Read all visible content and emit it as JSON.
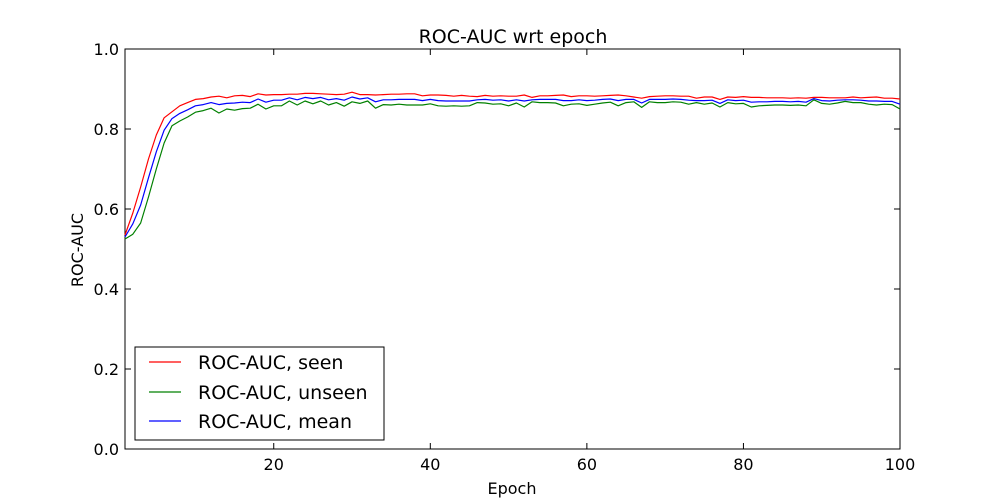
{
  "chart_data": {
    "type": "line",
    "title": "ROC-AUC wrt epoch",
    "xlabel": "Epoch",
    "ylabel": "ROC-AUC",
    "xlim": [
      1,
      100
    ],
    "ylim": [
      0.0,
      1.0
    ],
    "xticks": [
      20,
      40,
      60,
      80,
      100
    ],
    "xtick_labels": [
      "20",
      "40",
      "60",
      "80",
      "100"
    ],
    "yticks": [
      0.0,
      0.2,
      0.4,
      0.6,
      0.8,
      1.0
    ],
    "ytick_labels": [
      "0.0",
      "0.2",
      "0.4",
      "0.6",
      "0.8",
      "1.0"
    ],
    "grid": false,
    "legend_position": "lower-left",
    "x": [
      1,
      2,
      3,
      4,
      5,
      6,
      7,
      8,
      9,
      10,
      11,
      12,
      13,
      14,
      15,
      16,
      17,
      18,
      19,
      20,
      21,
      22,
      23,
      24,
      25,
      26,
      27,
      28,
      29,
      30,
      31,
      32,
      33,
      34,
      35,
      36,
      37,
      38,
      39,
      40,
      41,
      42,
      43,
      44,
      45,
      46,
      47,
      48,
      49,
      50,
      51,
      52,
      53,
      54,
      55,
      56,
      57,
      58,
      59,
      60,
      61,
      62,
      63,
      64,
      65,
      66,
      67,
      68,
      69,
      70,
      71,
      72,
      73,
      74,
      75,
      76,
      77,
      78,
      79,
      80,
      81,
      82,
      83,
      84,
      85,
      86,
      87,
      88,
      89,
      90,
      91,
      92,
      93,
      94,
      95,
      96,
      97,
      98,
      99,
      100
    ],
    "series": [
      {
        "name": "ROC-AUC, seen",
        "color": "#ff0000",
        "values": [
          0.535,
          0.59,
          0.655,
          0.725,
          0.785,
          0.828,
          0.843,
          0.858,
          0.866,
          0.874,
          0.876,
          0.88,
          0.882,
          0.878,
          0.883,
          0.884,
          0.881,
          0.888,
          0.885,
          0.886,
          0.886,
          0.887,
          0.887,
          0.889,
          0.889,
          0.888,
          0.887,
          0.886,
          0.887,
          0.892,
          0.886,
          0.886,
          0.885,
          0.886,
          0.887,
          0.887,
          0.888,
          0.888,
          0.883,
          0.885,
          0.885,
          0.884,
          0.882,
          0.884,
          0.882,
          0.881,
          0.884,
          0.882,
          0.883,
          0.882,
          0.882,
          0.885,
          0.879,
          0.883,
          0.883,
          0.884,
          0.885,
          0.881,
          0.883,
          0.883,
          0.882,
          0.883,
          0.884,
          0.885,
          0.883,
          0.88,
          0.877,
          0.881,
          0.882,
          0.883,
          0.883,
          0.882,
          0.882,
          0.877,
          0.88,
          0.88,
          0.874,
          0.88,
          0.879,
          0.881,
          0.879,
          0.879,
          0.878,
          0.878,
          0.878,
          0.877,
          0.878,
          0.877,
          0.879,
          0.879,
          0.878,
          0.878,
          0.878,
          0.88,
          0.878,
          0.879,
          0.88,
          0.877,
          0.877,
          0.875
        ]
      },
      {
        "name": "ROC-AUC, unseen",
        "color": "#008000",
        "values": [
          0.525,
          0.537,
          0.565,
          0.63,
          0.7,
          0.765,
          0.808,
          0.82,
          0.83,
          0.842,
          0.846,
          0.852,
          0.84,
          0.85,
          0.847,
          0.851,
          0.852,
          0.862,
          0.85,
          0.858,
          0.858,
          0.87,
          0.86,
          0.87,
          0.863,
          0.87,
          0.86,
          0.866,
          0.857,
          0.868,
          0.864,
          0.87,
          0.852,
          0.861,
          0.86,
          0.862,
          0.86,
          0.86,
          0.86,
          0.863,
          0.858,
          0.857,
          0.858,
          0.857,
          0.858,
          0.866,
          0.865,
          0.862,
          0.863,
          0.858,
          0.865,
          0.855,
          0.868,
          0.866,
          0.866,
          0.865,
          0.858,
          0.862,
          0.863,
          0.859,
          0.862,
          0.865,
          0.867,
          0.858,
          0.866,
          0.868,
          0.854,
          0.868,
          0.866,
          0.866,
          0.868,
          0.867,
          0.862,
          0.866,
          0.862,
          0.865,
          0.855,
          0.866,
          0.863,
          0.864,
          0.855,
          0.858,
          0.859,
          0.86,
          0.86,
          0.859,
          0.86,
          0.858,
          0.873,
          0.864,
          0.862,
          0.865,
          0.869,
          0.866,
          0.866,
          0.862,
          0.86,
          0.862,
          0.861,
          0.85
        ]
      },
      {
        "name": "ROC-AUC, mean",
        "color": "#0000ff",
        "values": [
          0.53,
          0.563,
          0.61,
          0.678,
          0.743,
          0.797,
          0.826,
          0.839,
          0.848,
          0.858,
          0.861,
          0.866,
          0.861,
          0.864,
          0.865,
          0.867,
          0.866,
          0.875,
          0.867,
          0.872,
          0.872,
          0.878,
          0.873,
          0.879,
          0.876,
          0.879,
          0.873,
          0.876,
          0.872,
          0.88,
          0.875,
          0.878,
          0.868,
          0.873,
          0.873,
          0.874,
          0.874,
          0.874,
          0.871,
          0.874,
          0.871,
          0.87,
          0.87,
          0.87,
          0.87,
          0.873,
          0.874,
          0.872,
          0.873,
          0.87,
          0.873,
          0.87,
          0.873,
          0.874,
          0.874,
          0.874,
          0.871,
          0.871,
          0.873,
          0.871,
          0.872,
          0.874,
          0.875,
          0.871,
          0.874,
          0.874,
          0.865,
          0.874,
          0.874,
          0.874,
          0.875,
          0.874,
          0.872,
          0.871,
          0.871,
          0.872,
          0.864,
          0.873,
          0.871,
          0.872,
          0.867,
          0.868,
          0.868,
          0.869,
          0.869,
          0.868,
          0.869,
          0.867,
          0.876,
          0.871,
          0.87,
          0.872,
          0.873,
          0.873,
          0.872,
          0.87,
          0.87,
          0.869,
          0.869,
          0.862
        ]
      }
    ]
  }
}
